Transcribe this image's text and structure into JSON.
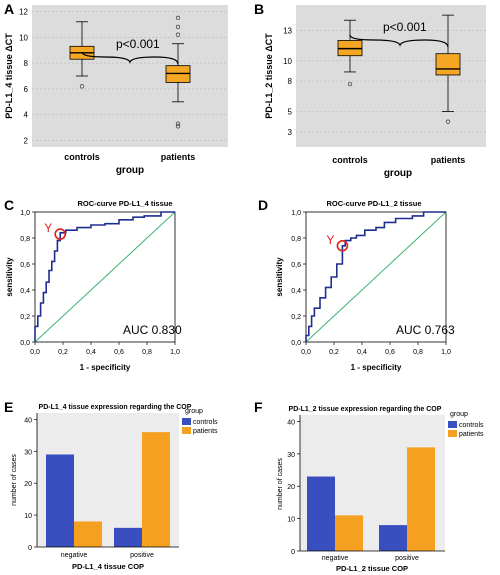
{
  "colors": {
    "box": "#f5a623",
    "navy": "#1f2f8f",
    "diag": "#3cb371",
    "marker": "#e02020",
    "controls": "#3a4fbf",
    "patients": "#f5a020"
  },
  "chart_data": [
    {
      "type": "box",
      "panel_label": "A",
      "ylabel": "PD-L1_4 tissue ΔCT",
      "xlabel": "group",
      "categories": [
        "controls",
        "patients"
      ],
      "ylim": [
        1.5,
        12.5
      ],
      "yticks": [
        "2",
        "4",
        "6",
        "8",
        "10",
        "12"
      ],
      "boxes": [
        {
          "whisker_low": 7.0,
          "q1": 8.3,
          "median": 8.8,
          "q3": 9.3,
          "whisker_high": 11.2,
          "outliers": [
            6.2
          ]
        },
        {
          "whisker_low": 5.0,
          "q1": 6.5,
          "median": 7.2,
          "q3": 7.8,
          "whisker_high": 9.5,
          "outliers": [
            11.5,
            10.8,
            10.2,
            3.3,
            3.1
          ]
        }
      ],
      "annotation": "p<0.001"
    },
    {
      "type": "box",
      "panel_label": "B",
      "ylabel": "PD-L1_2 tissue ΔCT",
      "xlabel": "group",
      "categories": [
        "controls",
        "patients"
      ],
      "ylim": [
        1.5,
        15.5
      ],
      "yticks": [
        "3",
        "5",
        "8",
        "10",
        "13"
      ],
      "boxes": [
        {
          "whisker_low": 8.9,
          "q1": 10.5,
          "median": 11.2,
          "q3": 12.0,
          "whisker_high": 14.0,
          "outliers": [
            7.7
          ]
        },
        {
          "whisker_low": 5.0,
          "q1": 8.6,
          "median": 9.2,
          "q3": 10.7,
          "whisker_high": 14.5,
          "outliers": [
            4.0
          ]
        }
      ],
      "annotation": "p<0.001"
    },
    {
      "type": "line",
      "panel_label": "C",
      "title": "ROC-curve PD-L1_4 tissue",
      "xlabel": "1 - specificity",
      "ylabel": "sensitivity",
      "xticks": [
        "0,0",
        "0,2",
        "0,4",
        "0,6",
        "0,8",
        "1,0"
      ],
      "yticks": [
        "0,0",
        "0,2",
        "0,4",
        "0,6",
        "0,8",
        "1,0"
      ],
      "x": [
        0,
        0,
        0.02,
        0.02,
        0.04,
        0.04,
        0.06,
        0.06,
        0.08,
        0.08,
        0.1,
        0.1,
        0.12,
        0.12,
        0.14,
        0.14,
        0.16,
        0.16,
        0.18,
        0.18,
        0.22,
        0.22,
        0.3,
        0.3,
        0.4,
        0.4,
        0.5,
        0.5,
        0.6,
        0.6,
        0.7,
        0.7,
        0.78,
        0.78,
        0.9,
        0.9,
        1.0
      ],
      "y": [
        0,
        0.12,
        0.12,
        0.2,
        0.2,
        0.3,
        0.3,
        0.38,
        0.38,
        0.46,
        0.46,
        0.55,
        0.55,
        0.62,
        0.62,
        0.7,
        0.7,
        0.78,
        0.78,
        0.84,
        0.84,
        0.86,
        0.86,
        0.88,
        0.88,
        0.9,
        0.9,
        0.91,
        0.91,
        0.94,
        0.94,
        0.96,
        0.96,
        0.97,
        0.97,
        1.0,
        1.0
      ],
      "marker": {
        "label": "Y",
        "x": 0.18,
        "y": 0.83
      },
      "auc_label": "AUC 0.830"
    },
    {
      "type": "line",
      "panel_label": "D",
      "title": "ROC-curve PD-L1_2 tissue",
      "xlabel": "1 - specificity",
      "ylabel": "sensitivity",
      "xticks": [
        "0,0",
        "0,2",
        "0,4",
        "0,6",
        "0,8",
        "1,0"
      ],
      "yticks": [
        "0,0",
        "0,2",
        "0,4",
        "0,6",
        "0,8",
        "1,0"
      ],
      "x": [
        0,
        0,
        0.02,
        0.02,
        0.04,
        0.04,
        0.06,
        0.06,
        0.1,
        0.1,
        0.14,
        0.14,
        0.18,
        0.18,
        0.22,
        0.22,
        0.26,
        0.26,
        0.28,
        0.28,
        0.32,
        0.32,
        0.36,
        0.36,
        0.42,
        0.42,
        0.5,
        0.5,
        0.56,
        0.56,
        0.64,
        0.64,
        0.76,
        0.76,
        0.84,
        0.84,
        1.0
      ],
      "y": [
        0,
        0.05,
        0.05,
        0.12,
        0.12,
        0.2,
        0.2,
        0.26,
        0.26,
        0.34,
        0.34,
        0.42,
        0.42,
        0.5,
        0.5,
        0.6,
        0.6,
        0.74,
        0.74,
        0.78,
        0.78,
        0.8,
        0.8,
        0.82,
        0.82,
        0.86,
        0.86,
        0.88,
        0.88,
        0.92,
        0.92,
        0.95,
        0.95,
        0.97,
        0.97,
        1.0,
        1.0
      ],
      "marker": {
        "label": "Y",
        "x": 0.26,
        "y": 0.74
      },
      "auc_label": "AUC 0.763"
    },
    {
      "type": "bar",
      "panel_label": "E",
      "title": "PD-L1_4 tissue expression regarding the COP",
      "xlabel": "PD-L1_4 tissue COP",
      "ylabel": "number of cases",
      "categories": [
        "negative",
        "positive"
      ],
      "series": [
        {
          "name": "controls",
          "values": [
            29,
            6
          ]
        },
        {
          "name": "patients",
          "values": [
            8,
            36
          ]
        }
      ],
      "ylim": [
        0,
        42
      ],
      "yticks": [
        "0",
        "10",
        "20",
        "30",
        "40"
      ],
      "legend_title": "group",
      "legend_position": "top-right"
    },
    {
      "type": "bar",
      "panel_label": "F",
      "title": "PD-L1_2 tissue expression regarding the COP",
      "xlabel": "PD-L1_2 tissue COP",
      "ylabel": "number of cases",
      "categories": [
        "negative",
        "positive"
      ],
      "series": [
        {
          "name": "controls",
          "values": [
            23,
            8
          ]
        },
        {
          "name": "patients",
          "values": [
            11,
            32
          ]
        }
      ],
      "ylim": [
        0,
        42
      ],
      "yticks": [
        "0",
        "10",
        "20",
        "30",
        "40"
      ],
      "legend_title": "group",
      "legend_position": "top-right"
    }
  ]
}
